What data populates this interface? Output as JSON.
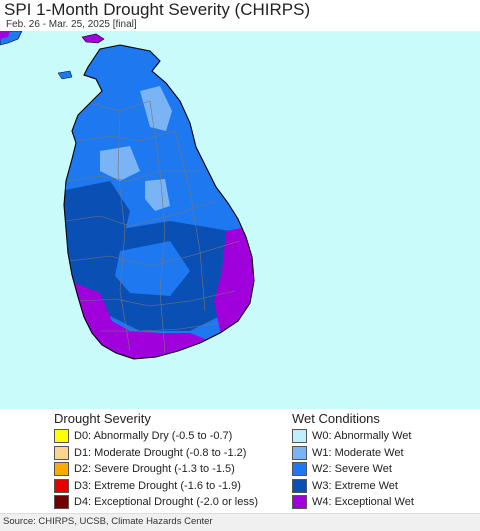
{
  "header": {
    "title": "SPI 1-Month Drought Severity (CHIRPS)",
    "subtitle": "Feb. 26 - Mar. 25, 2025 [final]"
  },
  "map": {
    "sea_color": "#c9fbfb",
    "land_border_color": "#000000",
    "district_border_color": "#777777"
  },
  "legend": {
    "drought": {
      "heading": "Drought Severity",
      "items": [
        {
          "label": "D0: Abnormally Dry (-0.5 to -0.7)",
          "color": "#ffff00"
        },
        {
          "label": "D1: Moderate Drought (-0.8 to -1.2)",
          "color": "#fcd38f"
        },
        {
          "label": "D2: Severe Drought (-1.3 to -1.5)",
          "color": "#ffaa00"
        },
        {
          "label": "D3: Extreme Drought (-1.6 to -1.9)",
          "color": "#e60000"
        },
        {
          "label": "D4: Exceptional Drought (-2.0 or less)",
          "color": "#730000"
        }
      ]
    },
    "wet": {
      "heading": "Wet Conditions",
      "items": [
        {
          "label": "W0: Abnormally Wet",
          "color": "#bfefff"
        },
        {
          "label": "W1: Moderate Wet",
          "color": "#7ab4f5"
        },
        {
          "label": "W2: Severe Wet",
          "color": "#1e78f0"
        },
        {
          "label": "W3: Extreme Wet",
          "color": "#0a4fb4"
        },
        {
          "label": "W4: Exceptional Wet",
          "color": "#a000dc"
        }
      ]
    }
  },
  "footer": {
    "source": "Source: CHIRPS, UCSB, Climate Hazards Center"
  }
}
